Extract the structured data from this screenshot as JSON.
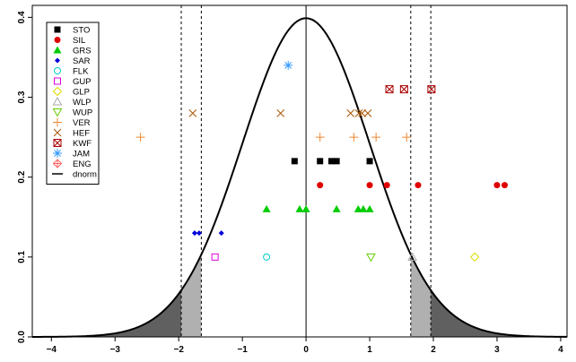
{
  "chart_data": {
    "type": "scatter",
    "title": "",
    "xlabel": "",
    "ylabel": "",
    "xlim": [
      -4.3,
      4.1
    ],
    "ylim": [
      0,
      0.415
    ],
    "x_ticks": [
      -4,
      -3,
      -2,
      -1,
      0,
      1,
      2,
      3,
      4
    ],
    "x_tick_labels": [
      "−4",
      "−3",
      "−2",
      "−1",
      "0",
      "1",
      "2",
      "3",
      "4"
    ],
    "y_ticks": [
      0.0,
      0.1,
      0.2,
      0.3,
      0.4
    ],
    "y_tick_labels": [
      "0.0",
      "0.1",
      "0.2",
      "0.3",
      "0.4"
    ],
    "grid": false,
    "legend_position": "top-left",
    "curve": {
      "name": "dnorm",
      "mean": 0,
      "sd": 1,
      "color": "#000000"
    },
    "vertical_lines": {
      "solid": [
        0
      ],
      "dashed": [
        -1.96,
        -1.645,
        1.645,
        1.96
      ]
    },
    "shaded_tails": [
      {
        "from": -4.3,
        "to": -1.96,
        "color": "#606060"
      },
      {
        "from": -1.96,
        "to": -1.645,
        "color": "#b0b0b0"
      },
      {
        "from": 1.645,
        "to": 1.96,
        "color": "#b0b0b0"
      },
      {
        "from": 1.96,
        "to": 4.1,
        "color": "#606060"
      }
    ],
    "series": [
      {
        "name": "STO",
        "marker": "square",
        "color": "#000000",
        "points": [
          [
            -0.18,
            0.22
          ],
          [
            0.22,
            0.22
          ],
          [
            0.4,
            0.22
          ],
          [
            0.48,
            0.22
          ],
          [
            1.0,
            0.22
          ]
        ]
      },
      {
        "name": "SIL",
        "marker": "circle",
        "color": "#e00000",
        "points": [
          [
            0.22,
            0.19
          ],
          [
            1.0,
            0.19
          ],
          [
            1.27,
            0.19
          ],
          [
            1.76,
            0.19
          ],
          [
            3.0,
            0.19
          ],
          [
            3.12,
            0.19
          ]
        ]
      },
      {
        "name": "GRS",
        "marker": "triangle",
        "color": "#00cc00",
        "points": [
          [
            -0.62,
            0.16
          ],
          [
            -0.1,
            0.16
          ],
          [
            0.0,
            0.16
          ],
          [
            0.48,
            0.16
          ],
          [
            0.82,
            0.16
          ],
          [
            0.9,
            0.16
          ],
          [
            1.0,
            0.16
          ]
        ]
      },
      {
        "name": "SAR",
        "marker": "diamond-filled",
        "color": "#0000dd",
        "points": [
          [
            -1.75,
            0.13
          ],
          [
            -1.68,
            0.13
          ],
          [
            -1.33,
            0.13
          ]
        ]
      },
      {
        "name": "FLK",
        "marker": "circle-open",
        "color": "#00cccc",
        "points": [
          [
            -0.62,
            0.1
          ]
        ]
      },
      {
        "name": "GUP",
        "marker": "square-open",
        "color": "#dd00dd",
        "points": [
          [
            -1.43,
            0.1
          ]
        ]
      },
      {
        "name": "GLP",
        "marker": "diamond-open",
        "color": "#dddd00",
        "points": [
          [
            2.65,
            0.1
          ]
        ]
      },
      {
        "name": "WLP",
        "marker": "triangle-open",
        "color": "#aaaaaa",
        "points": [
          [
            1.67,
            0.1
          ]
        ]
      },
      {
        "name": "WUP",
        "marker": "triangle-down-open",
        "color": "#66cc00",
        "points": [
          [
            1.02,
            0.1
          ]
        ]
      },
      {
        "name": "VER",
        "marker": "plus",
        "color": "#ee8833",
        "points": [
          [
            -2.6,
            0.25
          ],
          [
            0.22,
            0.25
          ],
          [
            0.75,
            0.25
          ],
          [
            1.1,
            0.25
          ],
          [
            1.58,
            0.25
          ]
        ]
      },
      {
        "name": "HEF",
        "marker": "x",
        "color": "#aa5500",
        "points": [
          [
            -1.78,
            0.28
          ],
          [
            -0.4,
            0.28
          ],
          [
            0.7,
            0.28
          ],
          [
            0.83,
            0.28
          ],
          [
            0.88,
            0.28
          ],
          [
            0.97,
            0.28
          ]
        ]
      },
      {
        "name": "KWF",
        "marker": "boxed-x",
        "color": "#aa0000",
        "points": [
          [
            1.31,
            0.31
          ],
          [
            1.54,
            0.31
          ],
          [
            1.97,
            0.31
          ]
        ]
      },
      {
        "name": "JAM",
        "marker": "asterisk",
        "color": "#3399ff",
        "points": [
          [
            -0.28,
            0.34
          ]
        ]
      },
      {
        "name": "ENG",
        "marker": "diamond-plus",
        "color": "#ff6666",
        "points": []
      }
    ]
  }
}
